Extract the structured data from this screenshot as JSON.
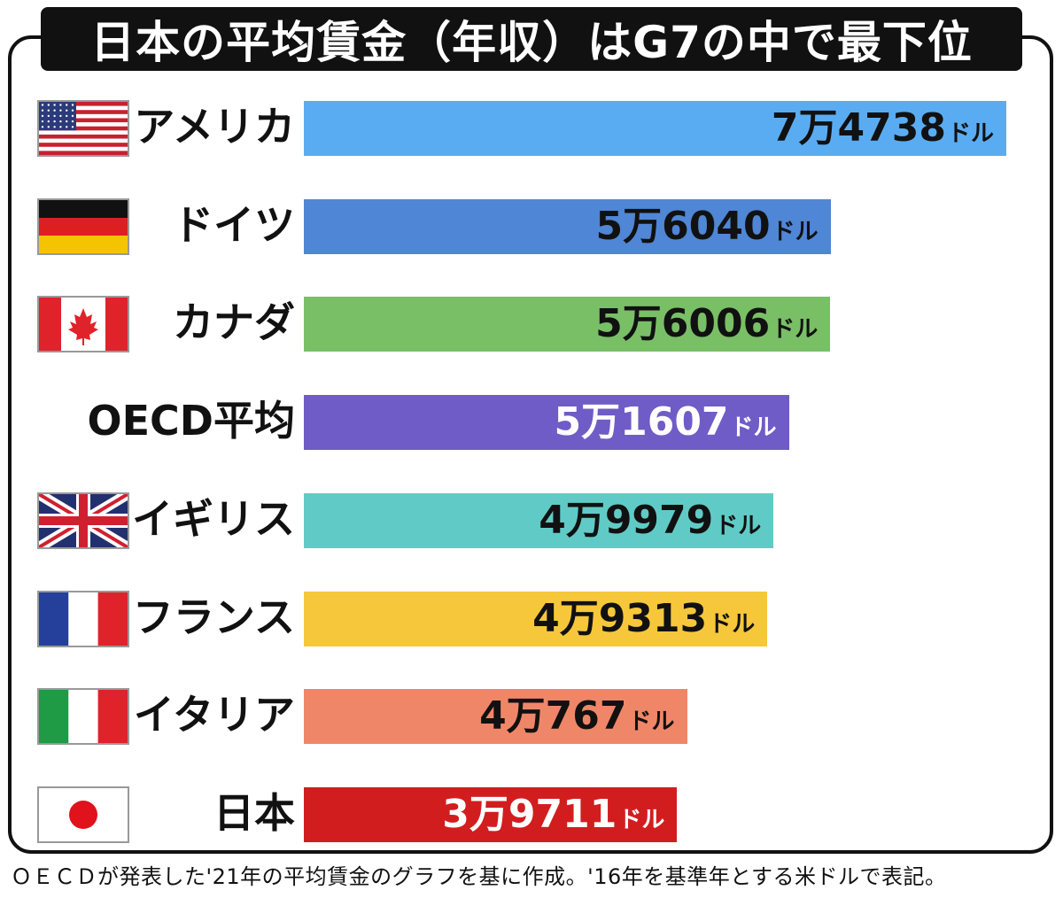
{
  "title": "日本の平均賃金（年収）はG7の中で最下位",
  "note": "ＯＥＣＤが発表した'21年の平均賃金のグラフを基に作成。'16年を基準年とする米ドルで表記。",
  "chart_data": {
    "type": "bar",
    "orientation": "horizontal",
    "categories": [
      "アメリカ",
      "ドイツ",
      "カナダ",
      "OECD平均",
      "イギリス",
      "フランス",
      "イタリア",
      "日本"
    ],
    "values": [
      74738,
      56040,
      56006,
      51607,
      49979,
      49313,
      40767,
      39711
    ],
    "value_labels": [
      "7万4738",
      "5万6040",
      "5万6006",
      "5万1607",
      "4万9979",
      "4万9313",
      "4万767",
      "3万9711"
    ],
    "unit": "ドル",
    "bar_colors": [
      "#5aacf2",
      "#4f86d6",
      "#79bf66",
      "#6f5cc6",
      "#60cbc6",
      "#f6c73b",
      "#f08668",
      "#d21d1f"
    ],
    "label_colors": [
      "#111111",
      "#111111",
      "#111111",
      "#ffffff",
      "#111111",
      "#111111",
      "#111111",
      "#ffffff"
    ],
    "flags": [
      "usa",
      "germany",
      "canada",
      "",
      "uk",
      "france",
      "italy",
      "japan"
    ]
  }
}
